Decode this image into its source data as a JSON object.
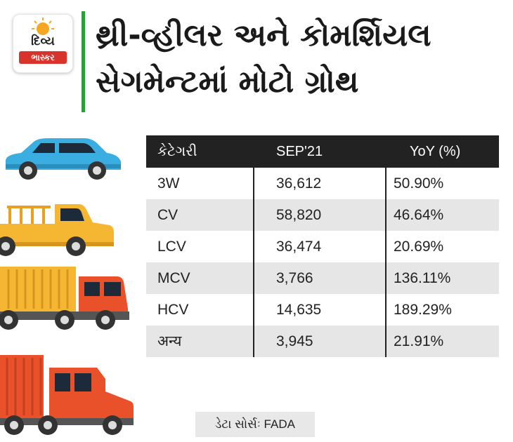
{
  "logo": {
    "line1": "દિવ્ય",
    "line2": "ભાસ્કર"
  },
  "headline": {
    "line1": "થ્રી-વ્હીલર અને કોમર્શિયલ",
    "line2": "સેગમેન્ટમાં મોટો ગ્રોથ"
  },
  "table": {
    "headers": [
      "કેટેગરી",
      "SEP'21",
      "YoY (%)"
    ],
    "rows": [
      [
        "3W",
        "36,612",
        "50.90%"
      ],
      [
        "CV",
        "58,820",
        "46.64%"
      ],
      [
        "LCV",
        "36,474",
        "20.69%"
      ],
      [
        "MCV",
        "3,766",
        "136.11%"
      ],
      [
        "HCV",
        "14,635",
        "189.29%"
      ],
      [
        "अन्य",
        "3,945",
        "21.91%"
      ]
    ]
  },
  "source": "ડેટા સોર્સઃ FADA",
  "colors": {
    "accent_bar": "#2e9d3f",
    "header_bg": "#222222",
    "shade_row": "#e6e6e6",
    "logo_red": "#d9342b"
  },
  "illustrations": [
    "car",
    "pickup-truck",
    "container-truck",
    "cargo-truck"
  ]
}
